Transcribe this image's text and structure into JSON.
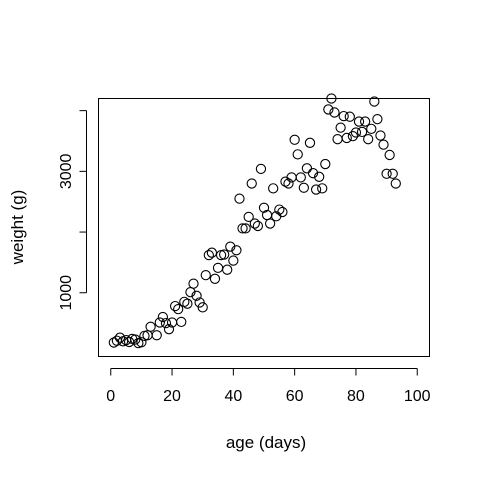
{
  "chart_data": {
    "type": "scatter",
    "title": "",
    "xlabel": "age (days)",
    "ylabel": "weight (g)",
    "xlim": [
      -4,
      104
    ],
    "ylim": [
      -50,
      4200
    ],
    "xticks": [
      0,
      20,
      40,
      60,
      80,
      100
    ],
    "xtick_labels": [
      "0",
      "20",
      "40",
      "60",
      "80",
      "100"
    ],
    "yticks": [
      1000,
      2000,
      3000,
      4000
    ],
    "ytick_labels": [
      "1000",
      "",
      "3000",
      ""
    ],
    "grid": false,
    "marker": "open-circle",
    "points": [
      {
        "x": 1,
        "y": 180
      },
      {
        "x": 2,
        "y": 210
      },
      {
        "x": 3,
        "y": 260
      },
      {
        "x": 4,
        "y": 200
      },
      {
        "x": 5,
        "y": 220
      },
      {
        "x": 6,
        "y": 190
      },
      {
        "x": 7,
        "y": 240
      },
      {
        "x": 8,
        "y": 230
      },
      {
        "x": 9,
        "y": 170
      },
      {
        "x": 10,
        "y": 185
      },
      {
        "x": 11,
        "y": 290
      },
      {
        "x": 12,
        "y": 300
      },
      {
        "x": 13,
        "y": 440
      },
      {
        "x": 15,
        "y": 300
      },
      {
        "x": 16,
        "y": 510
      },
      {
        "x": 17,
        "y": 600
      },
      {
        "x": 18,
        "y": 500
      },
      {
        "x": 19,
        "y": 400
      },
      {
        "x": 20,
        "y": 510
      },
      {
        "x": 21,
        "y": 780
      },
      {
        "x": 22,
        "y": 730
      },
      {
        "x": 23,
        "y": 520
      },
      {
        "x": 24,
        "y": 850
      },
      {
        "x": 25,
        "y": 820
      },
      {
        "x": 26,
        "y": 1010
      },
      {
        "x": 27,
        "y": 1150
      },
      {
        "x": 28,
        "y": 950
      },
      {
        "x": 29,
        "y": 840
      },
      {
        "x": 30,
        "y": 760
      },
      {
        "x": 31,
        "y": 1290
      },
      {
        "x": 32,
        "y": 1620
      },
      {
        "x": 33,
        "y": 1660
      },
      {
        "x": 34,
        "y": 1230
      },
      {
        "x": 35,
        "y": 1410
      },
      {
        "x": 36,
        "y": 1620
      },
      {
        "x": 37,
        "y": 1630
      },
      {
        "x": 38,
        "y": 1380
      },
      {
        "x": 39,
        "y": 1760
      },
      {
        "x": 40,
        "y": 1530
      },
      {
        "x": 41,
        "y": 1700
      },
      {
        "x": 42,
        "y": 2550
      },
      {
        "x": 43,
        "y": 2060
      },
      {
        "x": 44,
        "y": 2060
      },
      {
        "x": 45,
        "y": 2250
      },
      {
        "x": 46,
        "y": 2800
      },
      {
        "x": 47,
        "y": 2140
      },
      {
        "x": 48,
        "y": 2100
      },
      {
        "x": 49,
        "y": 3040
      },
      {
        "x": 50,
        "y": 2400
      },
      {
        "x": 51,
        "y": 2280
      },
      {
        "x": 52,
        "y": 2140
      },
      {
        "x": 53,
        "y": 2720
      },
      {
        "x": 54,
        "y": 2260
      },
      {
        "x": 55,
        "y": 2370
      },
      {
        "x": 56,
        "y": 2330
      },
      {
        "x": 57,
        "y": 2830
      },
      {
        "x": 58,
        "y": 2800
      },
      {
        "x": 59,
        "y": 2900
      },
      {
        "x": 60,
        "y": 3520
      },
      {
        "x": 61,
        "y": 3280
      },
      {
        "x": 62,
        "y": 2900
      },
      {
        "x": 63,
        "y": 2730
      },
      {
        "x": 64,
        "y": 3050
      },
      {
        "x": 65,
        "y": 3470
      },
      {
        "x": 66,
        "y": 2970
      },
      {
        "x": 67,
        "y": 2700
      },
      {
        "x": 68,
        "y": 2910
      },
      {
        "x": 69,
        "y": 2720
      },
      {
        "x": 70,
        "y": 3120
      },
      {
        "x": 71,
        "y": 4020
      },
      {
        "x": 72,
        "y": 4200
      },
      {
        "x": 73,
        "y": 3970
      },
      {
        "x": 74,
        "y": 3530
      },
      {
        "x": 75,
        "y": 3720
      },
      {
        "x": 76,
        "y": 3910
      },
      {
        "x": 77,
        "y": 3550
      },
      {
        "x": 78,
        "y": 3900
      },
      {
        "x": 79,
        "y": 3580
      },
      {
        "x": 80,
        "y": 3640
      },
      {
        "x": 81,
        "y": 3820
      },
      {
        "x": 82,
        "y": 3650
      },
      {
        "x": 83,
        "y": 3820
      },
      {
        "x": 84,
        "y": 3530
      },
      {
        "x": 85,
        "y": 3700
      },
      {
        "x": 86,
        "y": 4150
      },
      {
        "x": 87,
        "y": 3860
      },
      {
        "x": 88,
        "y": 3590
      },
      {
        "x": 89,
        "y": 3440
      },
      {
        "x": 90,
        "y": 2960
      },
      {
        "x": 91,
        "y": 3270
      },
      {
        "x": 92,
        "y": 2960
      },
      {
        "x": 93,
        "y": 2800
      }
    ]
  }
}
